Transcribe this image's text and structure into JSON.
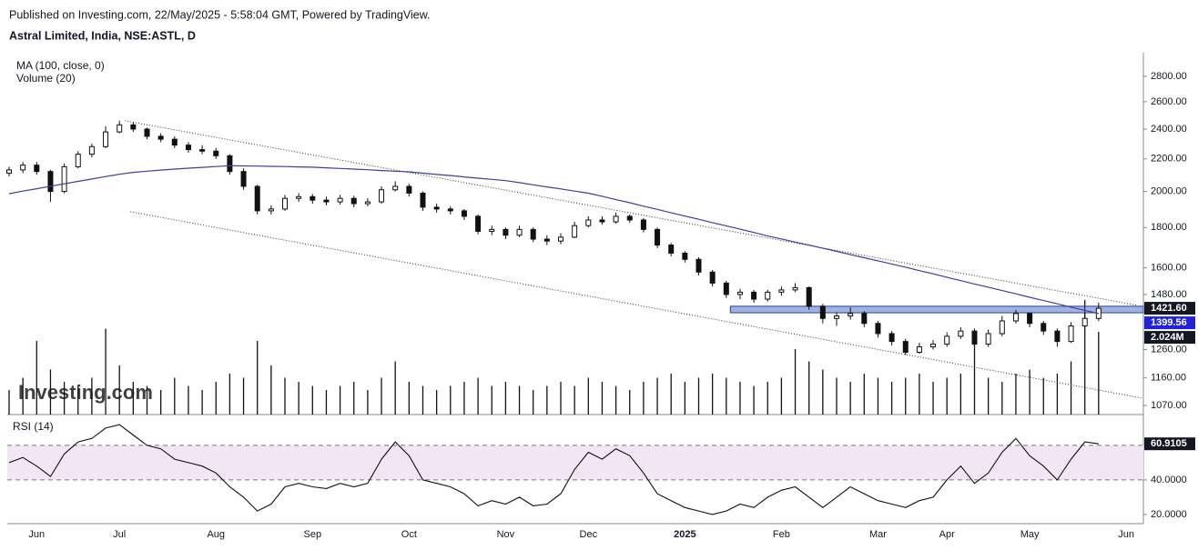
{
  "chart_data": {
    "type": "candlestick",
    "published": "Published on Investing.com, 22/May/2025 - 5:58:04 GMT, Powered by TradingView.",
    "title": "Astral Limited, India, NSE:ASTL, D",
    "ma_name": "MA (100, close, 0)",
    "volume_name": "Volume (20)",
    "rsi_name": "RSI (14)",
    "watermark": "Investing.com",
    "categories": [
      null,
      null,
      "Jun",
      null,
      null,
      null,
      null,
      null,
      "Jul",
      null,
      null,
      null,
      null,
      null,
      null,
      "Aug",
      null,
      null,
      null,
      null,
      null,
      null,
      "Sep",
      null,
      null,
      null,
      null,
      null,
      null,
      "Oct",
      null,
      null,
      null,
      null,
      null,
      null,
      "Nov",
      null,
      null,
      null,
      null,
      null,
      "Dec",
      null,
      null,
      null,
      null,
      null,
      null,
      "2025",
      null,
      null,
      null,
      null,
      null,
      null,
      "Feb",
      null,
      null,
      null,
      null,
      null,
      null,
      "Mar",
      null,
      null,
      null,
      null,
      "Apr",
      null,
      null,
      null,
      null,
      null,
      "May",
      null,
      null,
      null,
      null,
      null,
      null,
      "Jun"
    ],
    "open": [
      2110,
      2130,
      2160,
      2120,
      2000,
      2150,
      2230,
      2280,
      2380,
      2430,
      2400,
      2350,
      2330,
      2290,
      2260,
      2250,
      2220,
      2120,
      2030,
      1890,
      1900,
      1960,
      1970,
      1950,
      1940,
      1960,
      1930,
      1940,
      2010,
      2030,
      1990,
      1910,
      1900,
      1890,
      1860,
      1780,
      1790,
      1760,
      1790,
      1740,
      1730,
      1750,
      1810,
      1840,
      1830,
      1860,
      1840,
      1790,
      1710,
      1670,
      1640,
      1580,
      1530,
      1480,
      1490,
      1460,
      1490,
      1500,
      1510,
      1430,
      1380,
      1390,
      1400,
      1360,
      1320,
      1290,
      1250,
      1270,
      1280,
      1310,
      1330,
      1280,
      1320,
      1370,
      1400,
      1360,
      1330,
      1290,
      1350,
      1380,
      null,
      null
    ],
    "high": [
      2150,
      2180,
      2180,
      2130,
      2170,
      2250,
      2300,
      2420,
      2460,
      2450,
      2410,
      2370,
      2350,
      2310,
      2290,
      2270,
      2230,
      2140,
      2040,
      1920,
      1980,
      1990,
      1985,
      1970,
      1980,
      1975,
      1960,
      2030,
      2060,
      2045,
      2000,
      1930,
      1915,
      1900,
      1870,
      1810,
      1800,
      1810,
      1800,
      1760,
      1770,
      1830,
      1860,
      1860,
      1880,
      1870,
      1850,
      1800,
      1720,
      1680,
      1650,
      1590,
      1540,
      1505,
      1500,
      1500,
      1515,
      1530,
      1515,
      1440,
      1405,
      1425,
      1410,
      1370,
      1330,
      1300,
      1285,
      1295,
      1325,
      1345,
      1340,
      1335,
      1390,
      1415,
      1405,
      1370,
      1340,
      1365,
      1430,
      1445,
      null,
      null
    ],
    "low": [
      2090,
      2110,
      2100,
      1940,
      1990,
      2140,
      2210,
      2270,
      2370,
      2380,
      2330,
      2310,
      2270,
      2240,
      2230,
      2200,
      2100,
      2010,
      1870,
      1870,
      1890,
      1940,
      1930,
      1920,
      1925,
      1910,
      1915,
      1930,
      2000,
      1970,
      1890,
      1880,
      1870,
      1840,
      1765,
      1760,
      1740,
      1750,
      1725,
      1710,
      1715,
      1745,
      1800,
      1815,
      1820,
      1825,
      1775,
      1695,
      1655,
      1625,
      1565,
      1515,
      1465,
      1460,
      1445,
      1450,
      1475,
      1490,
      1415,
      1360,
      1350,
      1375,
      1345,
      1305,
      1275,
      1240,
      1245,
      1260,
      1270,
      1300,
      1265,
      1270,
      1310,
      1360,
      1345,
      1315,
      1270,
      1285,
      1340,
      1370,
      null,
      null
    ],
    "close": [
      2130,
      2160,
      2120,
      2000,
      2150,
      2230,
      2280,
      2380,
      2430,
      2400,
      2350,
      2330,
      2290,
      2260,
      2250,
      2220,
      2120,
      2030,
      1890,
      1900,
      1960,
      1970,
      1950,
      1940,
      1960,
      1930,
      1940,
      2010,
      2030,
      1990,
      1910,
      1900,
      1890,
      1860,
      1780,
      1790,
      1760,
      1790,
      1740,
      1730,
      1750,
      1810,
      1840,
      1830,
      1860,
      1840,
      1790,
      1710,
      1670,
      1640,
      1580,
      1530,
      1480,
      1490,
      1460,
      1490,
      1500,
      1510,
      1430,
      1380,
      1390,
      1400,
      1360,
      1320,
      1290,
      1250,
      1270,
      1280,
      1310,
      1330,
      1280,
      1320,
      1370,
      1400,
      1360,
      1330,
      1290,
      1350,
      1380,
      1421.6,
      null,
      null
    ],
    "ma": [
      1987,
      2002,
      2016,
      2031,
      2045,
      2060,
      2074,
      2089,
      2103,
      2115,
      2122,
      2129,
      2135,
      2141,
      2146,
      2151,
      2156,
      2155,
      2154,
      2152,
      2151,
      2149,
      2147,
      2143,
      2139,
      2135,
      2131,
      2126,
      2122,
      2118,
      2110,
      2102,
      2095,
      2087,
      2079,
      2072,
      2064,
      2052,
      2039,
      2027,
      2015,
      2002,
      1990,
      1972,
      1953,
      1935,
      1916,
      1898,
      1879,
      1861,
      1844,
      1826,
      1809,
      1791,
      1774,
      1756,
      1741,
      1725,
      1710,
      1694,
      1679,
      1663,
      1648,
      1633,
      1618,
      1603,
      1587,
      1572,
      1556,
      1541,
      1526,
      1512,
      1497,
      1483,
      1468,
      1454,
      1440,
      1426,
      1413,
      1399.56,
      null,
      null
    ],
    "ma_color": "#3c3ca6",
    "volume": [
      600000,
      900000,
      1800000,
      1100000,
      800000,
      700000,
      900000,
      2100000,
      1200000,
      800000,
      700000,
      600000,
      900000,
      700000,
      600000,
      800000,
      1000000,
      900000,
      1800000,
      1200000,
      900000,
      800000,
      700000,
      600000,
      700000,
      800000,
      600000,
      900000,
      1300000,
      800000,
      700000,
      600000,
      700000,
      800000,
      900000,
      700000,
      800000,
      700000,
      600000,
      700000,
      800000,
      700000,
      900000,
      800000,
      700000,
      600000,
      800000,
      900000,
      1000000,
      800000,
      900000,
      1000000,
      900000,
      800000,
      700000,
      800000,
      900000,
      1600000,
      1300000,
      1100000,
      900000,
      800000,
      1000000,
      900000,
      800000,
      900000,
      1000000,
      800000,
      900000,
      1000000,
      1800000,
      900000,
      800000,
      1000000,
      1100000,
      900000,
      1000000,
      1300000,
      2800000,
      2024000,
      null,
      null
    ],
    "rsi": [
      50,
      53,
      48,
      42,
      55,
      62,
      64,
      70,
      72,
      66,
      60,
      58,
      52,
      50,
      48,
      44,
      36,
      30,
      22,
      26,
      36,
      38,
      36,
      35,
      38,
      36,
      38,
      52,
      62,
      54,
      40,
      38,
      36,
      32,
      25,
      28,
      26,
      30,
      25,
      26,
      32,
      46,
      56,
      52,
      58,
      54,
      44,
      32,
      28,
      24,
      22,
      20,
      22,
      26,
      24,
      30,
      34,
      36,
      30,
      24,
      30,
      36,
      32,
      28,
      26,
      24,
      28,
      30,
      40,
      48,
      38,
      44,
      56,
      64,
      54,
      48,
      40,
      52,
      62,
      60.9105,
      null,
      null
    ],
    "price_label": "1421.60",
    "ma_label": "1399.56",
    "volume_label": "2.024M",
    "rsi_label": "60.9105",
    "log_scale": true,
    "ylim": [
      1042,
      3000
    ],
    "yticks": [
      {
        "value": 1070,
        "label": "1070.00"
      },
      {
        "value": 1160,
        "label": "1160.00"
      },
      {
        "value": 1260,
        "label": "1260.00"
      },
      {
        "value": 1480,
        "label": "1480.00"
      },
      {
        "value": 1600,
        "label": "1600.00"
      },
      {
        "value": 1800,
        "label": "1800.00"
      },
      {
        "value": 2000,
        "label": "2000.00"
      },
      {
        "value": 2200,
        "label": "2200.00"
      },
      {
        "value": 2400,
        "label": "2400.00"
      },
      {
        "value": 2600,
        "label": "2600.00"
      },
      {
        "value": 2800,
        "label": "2800.00"
      }
    ],
    "volume_lim": [
      0,
      8850000
    ],
    "rsi_lim": [
      14.7,
      76.8
    ],
    "rsi_ticks": [
      {
        "value": 20,
        "label": "20.0000"
      },
      {
        "value": 40,
        "label": "40.0000"
      }
    ],
    "rsi_band": [
      40,
      60
    ],
    "trendlines": [
      {
        "from": [
          8.4,
          2459
        ],
        "to": [
          81.8,
          1434
        ]
      },
      {
        "from": [
          8.8,
          1885
        ],
        "to": [
          82.2,
          1093
        ]
      }
    ],
    "zone": {
      "from": 52.3,
      "prices": [
        1403,
        1430
      ]
    }
  }
}
